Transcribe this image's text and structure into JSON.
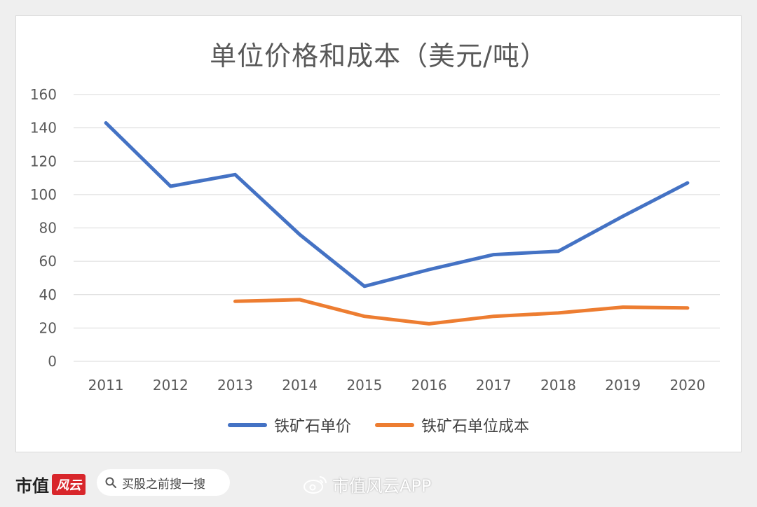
{
  "chart_data": {
    "type": "line",
    "title": "单位价格和成本（美元/吨）",
    "categories": [
      "2011",
      "2012",
      "2013",
      "2014",
      "2015",
      "2016",
      "2017",
      "2018",
      "2019",
      "2020"
    ],
    "ylim": [
      0,
      160
    ],
    "yticks": [
      0,
      20,
      40,
      60,
      80,
      100,
      120,
      140,
      160
    ],
    "grid": true,
    "legend_position": "bottom",
    "series": [
      {
        "name": "铁矿石单价",
        "color": "#4472c4",
        "values": [
          143,
          105,
          112,
          76,
          45,
          55,
          64,
          66,
          87,
          107
        ]
      },
      {
        "name": "铁矿石单位成本",
        "color": "#ed7d31",
        "values": [
          null,
          null,
          36,
          37,
          27,
          22.5,
          27,
          29,
          32.5,
          32
        ]
      }
    ]
  },
  "footer": {
    "brand": "市值",
    "brand_mark": "风云",
    "search_placeholder": "买股之前搜一搜",
    "search_icon": "search-icon",
    "weibo_icon": "weibo-icon",
    "weibo_account": "市值风云APP"
  }
}
